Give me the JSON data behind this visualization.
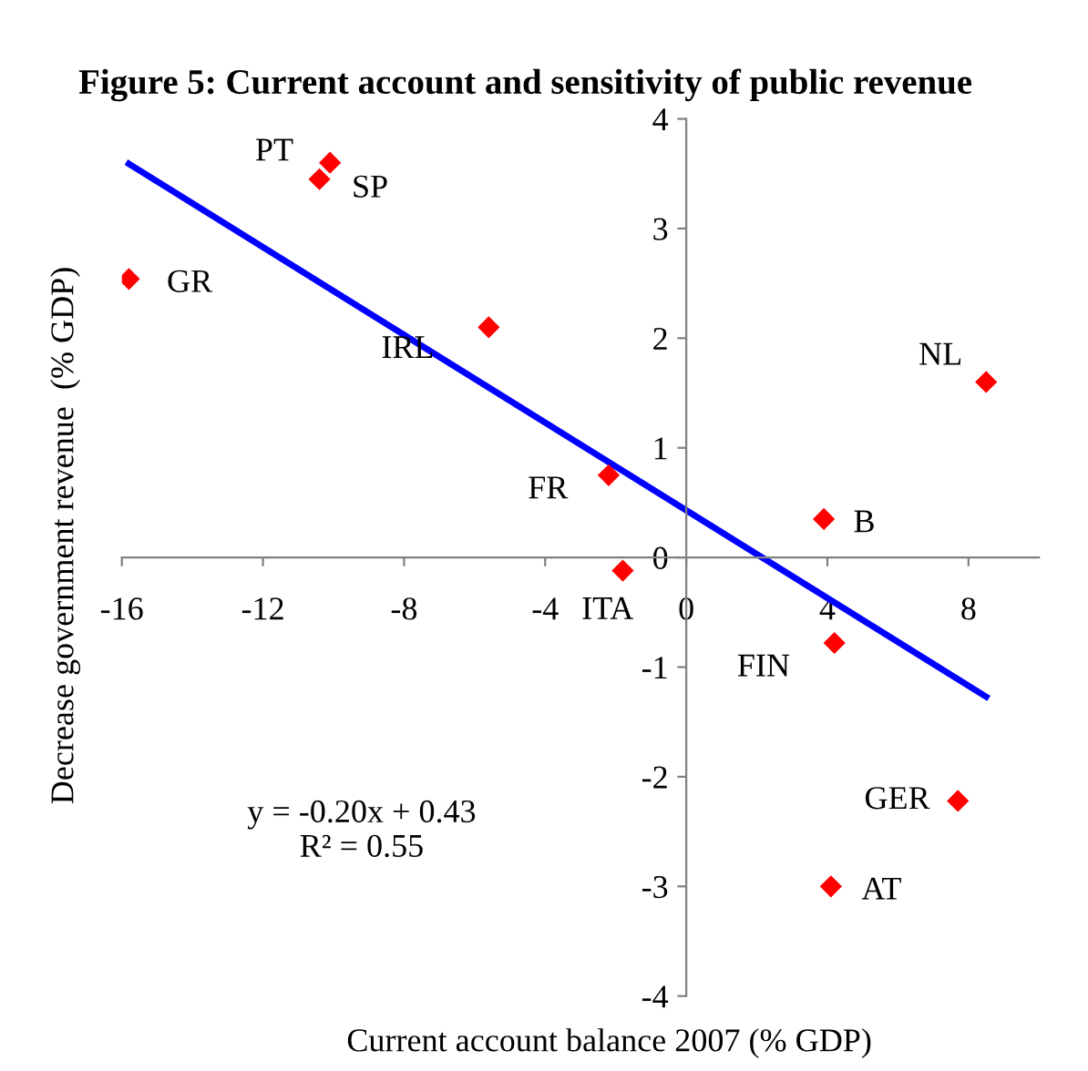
{
  "chart_data": {
    "type": "scatter",
    "title": "Figure 5: Current account and sensitivity of public revenue",
    "xlabel": "Current account balance 2007 (% GDP)",
    "ylabel": "Decrease government revenue  (% GDP)",
    "xlim": [
      -16,
      10
    ],
    "ylim": [
      -4,
      4
    ],
    "xticks": [
      -16,
      -12,
      -8,
      -4,
      0,
      4,
      8
    ],
    "yticks": [
      -4,
      -3,
      -2,
      -1,
      0,
      1,
      2,
      3,
      4
    ],
    "grid": false,
    "legend": false,
    "series": [
      {
        "color": "#ff0000",
        "marker": "diamond",
        "x": [
          -10.1,
          -10.4,
          -15.8,
          -5.6,
          -2.2,
          -1.8,
          3.9,
          4.2,
          8.5,
          7.7,
          4.1
        ],
        "values": [
          3.6,
          3.45,
          2.54,
          2.1,
          0.75,
          -0.12,
          0.35,
          -0.78,
          1.6,
          -2.22,
          -3.0
        ]
      },
      {
        "type": "line",
        "color": "#0000ff",
        "x": [
          -15.8,
          8.5
        ],
        "values": [
          3.59,
          -1.27
        ]
      }
    ],
    "annotations": [
      {
        "text": "PT",
        "x": -10.1,
        "y": 3.6
      },
      {
        "text": "SP",
        "x": -10.4,
        "y": 3.45
      },
      {
        "text": "GR",
        "x": -15.8,
        "y": 2.54
      },
      {
        "text": "IRL",
        "x": -5.6,
        "y": 2.1
      },
      {
        "text": "FR",
        "x": -2.2,
        "y": 0.75
      },
      {
        "text": "ITA",
        "x": -1.8,
        "y": -0.12
      },
      {
        "text": "B",
        "x": 3.9,
        "y": 0.35
      },
      {
        "text": "FIN",
        "x": 4.2,
        "y": -0.78
      },
      {
        "text": "NL",
        "x": 8.5,
        "y": 1.6
      },
      {
        "text": "GER",
        "x": 7.7,
        "y": -2.22
      },
      {
        "text": "AT",
        "x": 4.1,
        "y": -3.0
      },
      "y = -0.20x + 0.43\nR² = 0.55"
    ]
  }
}
